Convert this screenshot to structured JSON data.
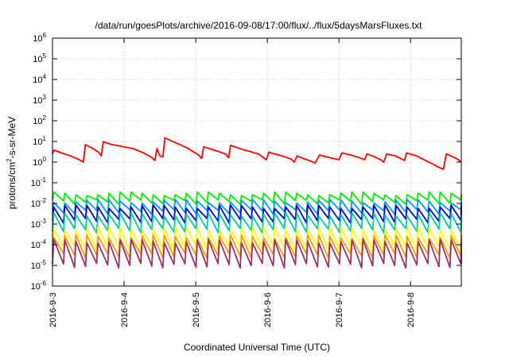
{
  "chart_data": {
    "type": "line",
    "title": "/data/run/goesPlots/archive/2016-09-08/17:00/flux/../flux/5daysMarsFluxes.txt",
    "xlabel": "Coordinated Universal Time (UTC)",
    "ylabel": {
      "prefix": "protons/cm",
      "sup": "2",
      "suffix": "-s-sr-MeV"
    },
    "x_scale": "time",
    "xlim": [
      "2016-09-03T00:00",
      "2016-09-08T17:00"
    ],
    "x_ticks": [
      "2016-9-3",
      "2016-9-4",
      "2016-9-5",
      "2016-9-6",
      "2016-9-7",
      "2016-9-8"
    ],
    "y_scale": "log",
    "ylim": [
      1e-06,
      1000000.0
    ],
    "y_ticks": [
      {
        "base": "10",
        "exp": "-6",
        "value": 1e-06
      },
      {
        "base": "10",
        "exp": "-5",
        "value": 1e-05
      },
      {
        "base": "10",
        "exp": "-4",
        "value": 0.0001
      },
      {
        "base": "10",
        "exp": "-3",
        "value": 0.001
      },
      {
        "base": "10",
        "exp": "-2",
        "value": 0.01
      },
      {
        "base": "10",
        "exp": "-1",
        "value": 0.1
      },
      {
        "base": "10",
        "exp": "0",
        "value": 1
      },
      {
        "base": "10",
        "exp": "1",
        "value": 10
      },
      {
        "base": "10",
        "exp": "2",
        "value": 100
      },
      {
        "base": "10",
        "exp": "3",
        "value": 1000
      },
      {
        "base": "10",
        "exp": "4",
        "value": 10000
      },
      {
        "base": "10",
        "exp": "5",
        "value": 100000
      },
      {
        "base": "10",
        "exp": "6",
        "value": 1000000
      }
    ],
    "grid": true,
    "legend": "none",
    "series": [
      {
        "color": "#ff0000",
        "points": [
          [
            "2016-09-03T00:00",
            2.5
          ],
          [
            "2016-09-03T00:30",
            3.8
          ],
          [
            "2016-09-03T03:00",
            2.8
          ],
          [
            "2016-09-03T06:00",
            2.0
          ],
          [
            "2016-09-03T09:00",
            1.3
          ],
          [
            "2016-09-03T10:20",
            1.0
          ],
          [
            "2016-09-03T11:00",
            7.0
          ],
          [
            "2016-09-03T13:00",
            5.0
          ],
          [
            "2016-09-03T15:30",
            3.0
          ],
          [
            "2016-09-03T16:20",
            2.0
          ],
          [
            "2016-09-03T17:00",
            9.5
          ],
          [
            "2016-09-03T20:00",
            7.0
          ],
          [
            "2016-09-04T00:00",
            5.5
          ],
          [
            "2016-09-04T03:00",
            4.5
          ],
          [
            "2016-09-04T06:00",
            3.0
          ],
          [
            "2016-09-04T09:00",
            1.8
          ],
          [
            "2016-09-04T10:20",
            1.2
          ],
          [
            "2016-09-04T11:00",
            4.5
          ],
          [
            "2016-09-04T12:00",
            2.0
          ],
          [
            "2016-09-04T13:00",
            1.8
          ],
          [
            "2016-09-04T13:40",
            15.0
          ],
          [
            "2016-09-04T17:00",
            9.0
          ],
          [
            "2016-09-04T21:00",
            5.0
          ],
          [
            "2016-09-05T01:00",
            2.2
          ],
          [
            "2016-09-05T02:00",
            1.5
          ],
          [
            "2016-09-05T02:40",
            5.5
          ],
          [
            "2016-09-05T07:00",
            3.5
          ],
          [
            "2016-09-05T10:00",
            2.5
          ],
          [
            "2016-09-05T11:00",
            1.6
          ],
          [
            "2016-09-05T11:40",
            6.5
          ],
          [
            "2016-09-05T16:00",
            4.0
          ],
          [
            "2016-09-05T21:00",
            2.5
          ],
          [
            "2016-09-05T23:40",
            1.3
          ],
          [
            "2016-09-06T00:30",
            3.0
          ],
          [
            "2016-09-06T05:00",
            2.0
          ],
          [
            "2016-09-06T08:00",
            1.4
          ],
          [
            "2016-09-06T09:00",
            1.0
          ],
          [
            "2016-09-06T10:00",
            2.0
          ],
          [
            "2016-09-06T12:00",
            1.5
          ],
          [
            "2016-09-06T14:00",
            1.2
          ],
          [
            "2016-09-06T16:00",
            0.9
          ],
          [
            "2016-09-06T17:30",
            2.2
          ],
          [
            "2016-09-06T22:00",
            1.5
          ],
          [
            "2016-09-07T00:00",
            1.3
          ],
          [
            "2016-09-07T01:00",
            2.8
          ],
          [
            "2016-09-07T04:00",
            2.2
          ],
          [
            "2016-09-07T07:00",
            1.6
          ],
          [
            "2016-09-07T08:40",
            1.3
          ],
          [
            "2016-09-07T09:20",
            2.5
          ],
          [
            "2016-09-07T12:00",
            1.8
          ],
          [
            "2016-09-07T14:00",
            1.3
          ],
          [
            "2016-09-07T15:00",
            1.0
          ],
          [
            "2016-09-07T16:00",
            2.5
          ],
          [
            "2016-09-07T19:00",
            2.0
          ],
          [
            "2016-09-07T21:00",
            1.4
          ],
          [
            "2016-09-07T22:00",
            1.2
          ],
          [
            "2016-09-07T22:40",
            2.8
          ],
          [
            "2016-09-08T02:00",
            2.0
          ],
          [
            "2016-09-08T05:00",
            1.2
          ],
          [
            "2016-09-08T07:30",
            0.8
          ],
          [
            "2016-09-08T09:00",
            0.6
          ],
          [
            "2016-09-08T11:00",
            0.45
          ],
          [
            "2016-09-08T12:00",
            2.5
          ],
          [
            "2016-09-08T15:00",
            1.6
          ],
          [
            "2016-09-08T16:00",
            1.3
          ],
          [
            "2016-09-08T17:00",
            1.0
          ]
        ]
      },
      {
        "color": "#00ee00",
        "period_hours": 3.7,
        "points": [
          [
            "2016-09-03T00:00",
            0.03
          ],
          [
            "2016-09-08T17:00",
            0.03
          ]
        ],
        "trough": 0.012
      },
      {
        "color": "#0099ff",
        "period_hours": 3.7,
        "points": [
          [
            "2016-09-03T00:00",
            0.013
          ],
          [
            "2016-09-08T17:00",
            0.013
          ]
        ],
        "trough": 0.004
      },
      {
        "color": "#0000cc",
        "period_hours": 3.7,
        "points": [
          [
            "2016-09-03T00:00",
            0.007
          ],
          [
            "2016-09-08T17:00",
            0.007
          ]
        ],
        "trough": 0.0015
      },
      {
        "color": "#00cc99",
        "period_hours": 3.7,
        "points": [
          [
            "2016-09-03T00:00",
            0.003
          ],
          [
            "2016-09-08T17:00",
            0.003
          ]
        ],
        "trough": 0.0005
      },
      {
        "color": "#ffff00",
        "period_hours": 3.7,
        "points": [
          [
            "2016-09-03T00:00",
            0.0006
          ],
          [
            "2016-09-08T17:00",
            0.0006
          ]
        ],
        "trough": 7e-05
      },
      {
        "color": "#ff9900",
        "period_hours": 3.7,
        "points": [
          [
            "2016-09-03T00:00",
            0.00025
          ],
          [
            "2016-09-08T17:00",
            0.00025
          ]
        ],
        "trough": 3e-05
      },
      {
        "color": "#993366",
        "period_hours": 3.7,
        "points": [
          [
            "2016-09-03T00:00",
            0.00015
          ],
          [
            "2016-09-08T17:00",
            0.00015
          ]
        ],
        "trough": 1e-05
      }
    ]
  }
}
